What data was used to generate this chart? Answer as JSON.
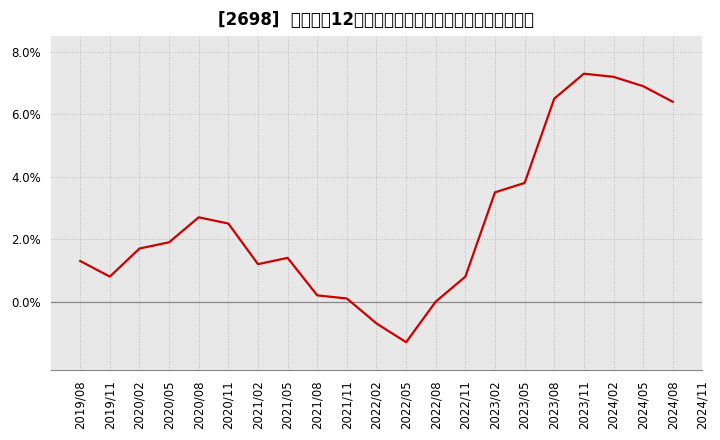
{
  "title": "[2698]  売上高の12か月移動合計の対前年同期増減率の推移",
  "dates": [
    "2019/08",
    "2019/11",
    "2020/02",
    "2020/05",
    "2020/08",
    "2020/11",
    "2021/02",
    "2021/05",
    "2021/08",
    "2021/11",
    "2022/02",
    "2022/05",
    "2022/08",
    "2022/11",
    "2023/02",
    "2023/05",
    "2023/08",
    "2023/11",
    "2024/02",
    "2024/05",
    "2024/08",
    "2024/11"
  ],
  "values": [
    0.013,
    0.008,
    0.017,
    0.019,
    0.027,
    0.025,
    0.012,
    0.014,
    0.002,
    0.001,
    -0.007,
    -0.013,
    0.0,
    0.008,
    0.035,
    0.038,
    0.065,
    0.073,
    0.072,
    0.069,
    0.064,
    null
  ],
  "line_color": "#cc0000",
  "background_color": "#ffffff",
  "plot_area_color": "#e8e8e8",
  "ylim": [
    -0.022,
    0.085
  ],
  "yticks": [
    0.0,
    0.02,
    0.04,
    0.06,
    0.08
  ],
  "ytick_labels": [
    "0.0%",
    "2.0%",
    "4.0%",
    "6.0%",
    "8.0%"
  ],
  "title_fontsize": 12,
  "tick_fontsize": 8.5,
  "grid_color": "#bbbbbb",
  "line_width": 1.6
}
